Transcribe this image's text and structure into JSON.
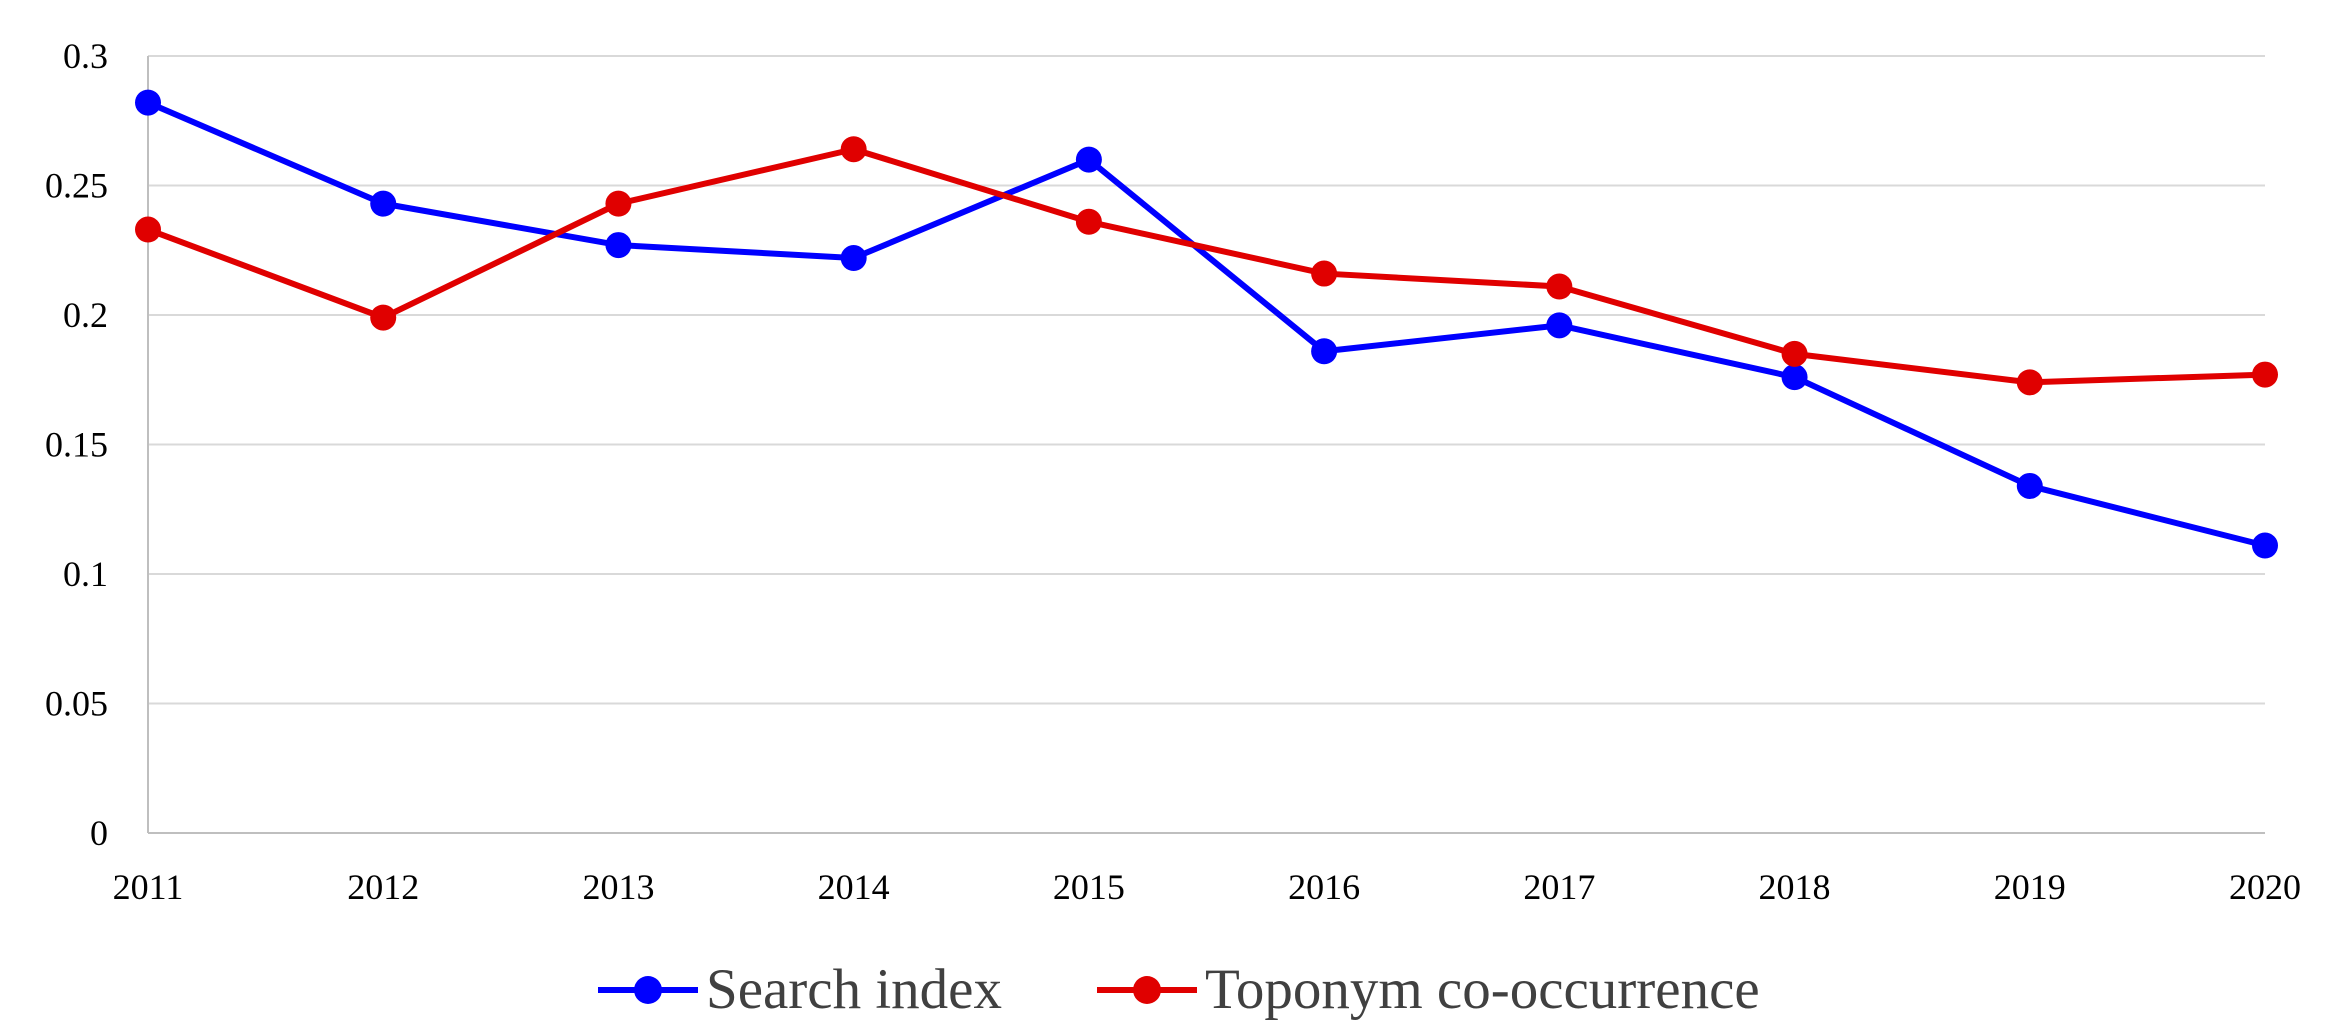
{
  "chart_data": {
    "type": "line",
    "x": [
      "2011",
      "2012",
      "2013",
      "2014",
      "2015",
      "2016",
      "2017",
      "2018",
      "2019",
      "2020"
    ],
    "ylim": [
      0,
      0.3
    ],
    "yticks": [
      "0",
      "0.05",
      "0.1",
      "0.15",
      "0.2",
      "0.25",
      "0.3"
    ],
    "grid": true,
    "legend_position": "bottom",
    "series": [
      {
        "name": "Search index",
        "color": "#0000ff",
        "values": [
          0.282,
          0.243,
          0.227,
          0.222,
          0.26,
          0.186,
          0.196,
          0.176,
          0.134,
          0.111
        ]
      },
      {
        "name": "Toponym co-occurrence",
        "color": "#e00000",
        "values": [
          0.233,
          0.199,
          0.243,
          0.264,
          0.236,
          0.216,
          0.211,
          0.185,
          0.174,
          0.177
        ]
      }
    ]
  }
}
